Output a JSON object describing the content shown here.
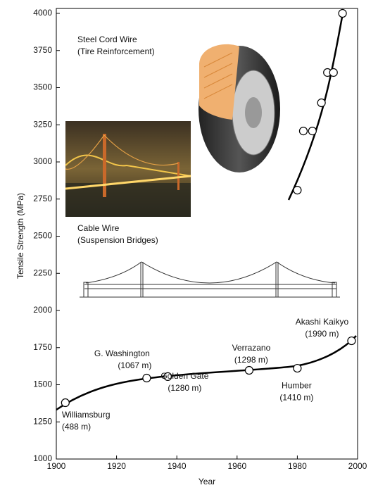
{
  "chart_data": {
    "type": "scatter",
    "x_label": "Year",
    "y_label": "Tensile Strength (MPa)",
    "xlim": [
      1900,
      2000
    ],
    "xticks": [
      1900,
      1920,
      1940,
      1960,
      1980,
      2000
    ],
    "ylim": [
      1000,
      4000
    ],
    "yticks": [
      1000,
      1250,
      1500,
      1750,
      2000,
      2250,
      2500,
      2750,
      3000,
      3250,
      3500,
      3750,
      4000
    ],
    "series": [
      {
        "name": "Steel Cord Wire",
        "note": "(Tire Reinforcement)",
        "color": "#000000",
        "x": [
          1980,
          1982,
          1985,
          1988,
          1990,
          1992,
          1995
        ],
        "values": [
          2810,
          3208,
          3208,
          3398,
          3602,
          3602,
          4000
        ]
      },
      {
        "name": "Cable Wire",
        "note": "(Suspension Bridges)",
        "color": "#000000",
        "x": [
          1903,
          1930,
          1937,
          1964,
          1980,
          1998
        ],
        "values": [
          1379,
          1545,
          1555,
          1597,
          1611,
          1796
        ],
        "point_labels": [
          [
            "Williamsburg",
            "(488 m)"
          ],
          [
            "G. Washington",
            "(1067 m)"
          ],
          [
            "Golden Gate",
            "(1280 m)"
          ],
          [
            "Verrazano",
            "(1298 m)"
          ],
          [
            "Humber",
            "(1410 m)"
          ],
          [
            "Akashi Kaikyo",
            "(1990 m)"
          ]
        ]
      }
    ]
  }
}
